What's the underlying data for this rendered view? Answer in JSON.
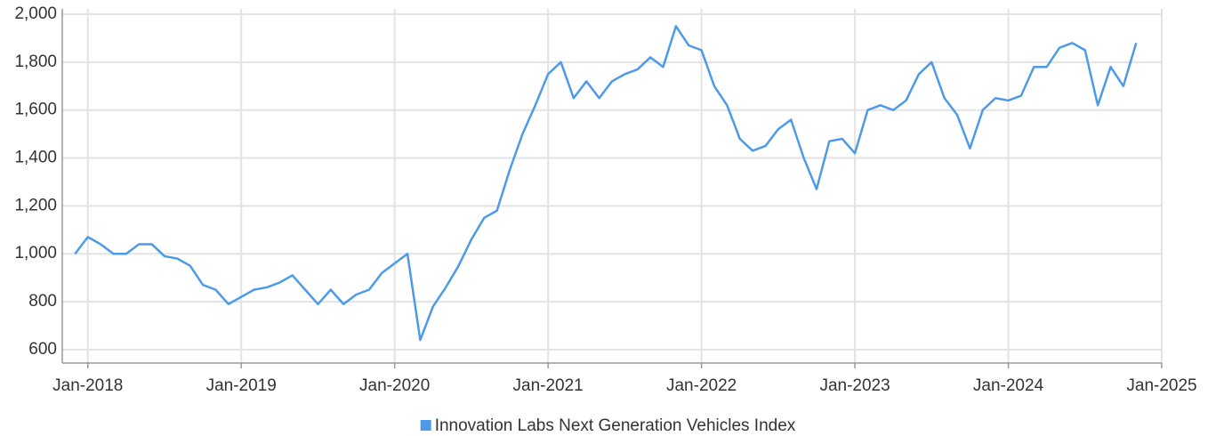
{
  "chart_data": {
    "type": "line",
    "x": [
      "2017-12",
      "2018-01",
      "2018-02",
      "2018-03",
      "2018-04",
      "2018-05",
      "2018-06",
      "2018-07",
      "2018-08",
      "2018-09",
      "2018-10",
      "2018-11",
      "2018-12",
      "2019-01",
      "2019-02",
      "2019-03",
      "2019-04",
      "2019-05",
      "2019-06",
      "2019-07",
      "2019-08",
      "2019-09",
      "2019-10",
      "2019-11",
      "2019-12",
      "2020-01",
      "2020-02",
      "2020-03",
      "2020-04",
      "2020-05",
      "2020-06",
      "2020-07",
      "2020-08",
      "2020-09",
      "2020-10",
      "2020-11",
      "2020-12",
      "2021-01",
      "2021-02",
      "2021-03",
      "2021-04",
      "2021-05",
      "2021-06",
      "2021-07",
      "2021-08",
      "2021-09",
      "2021-10",
      "2021-11",
      "2021-12",
      "2022-01",
      "2022-02",
      "2022-03",
      "2022-04",
      "2022-05",
      "2022-06",
      "2022-07",
      "2022-08",
      "2022-09",
      "2022-10",
      "2022-11",
      "2022-12",
      "2023-01",
      "2023-02",
      "2023-03",
      "2023-04",
      "2023-05",
      "2023-06",
      "2023-07",
      "2023-08",
      "2023-09",
      "2023-10",
      "2023-11",
      "2023-12",
      "2024-01",
      "2024-02",
      "2024-03",
      "2024-04",
      "2024-05",
      "2024-06",
      "2024-07",
      "2024-08",
      "2024-09",
      "2024-10",
      "2024-11"
    ],
    "series": [
      {
        "name": "Innovation Labs Next Generation Vehicles Index",
        "color": "#4d9be8",
        "values": [
          1000,
          1070,
          1040,
          1000,
          1000,
          1040,
          1040,
          990,
          980,
          950,
          870,
          850,
          790,
          820,
          850,
          860,
          880,
          910,
          850,
          790,
          850,
          790,
          830,
          850,
          920,
          960,
          1000,
          640,
          780,
          860,
          950,
          1060,
          1150,
          1180,
          1350,
          1500,
          1620,
          1750,
          1800,
          1650,
          1720,
          1650,
          1720,
          1750,
          1770,
          1820,
          1780,
          1950,
          1870,
          1850,
          1700,
          1620,
          1480,
          1430,
          1450,
          1520,
          1560,
          1400,
          1270,
          1470,
          1480,
          1420,
          1600,
          1620,
          1600,
          1640,
          1750,
          1800,
          1650,
          1580,
          1440,
          1600,
          1650,
          1640,
          1660,
          1780,
          1780,
          1860,
          1880,
          1850,
          1620,
          1780,
          1700,
          1880
        ]
      }
    ],
    "xlim": [
      "2017-11",
      "2025-01"
    ],
    "xticks": [
      {
        "value": "2018-01",
        "label": "Jan-2018"
      },
      {
        "value": "2019-01",
        "label": "Jan-2019"
      },
      {
        "value": "2020-01",
        "label": "Jan-2020"
      },
      {
        "value": "2021-01",
        "label": "Jan-2021"
      },
      {
        "value": "2022-01",
        "label": "Jan-2022"
      },
      {
        "value": "2023-01",
        "label": "Jan-2023"
      },
      {
        "value": "2024-01",
        "label": "Jan-2024"
      },
      {
        "value": "2025-01",
        "label": "Jan-2025"
      }
    ],
    "ylim": [
      544,
      2000
    ],
    "yticks": [
      600,
      800,
      {
        "value": 1000,
        "label": "1,000"
      },
      {
        "value": 1200,
        "label": "1,200"
      },
      {
        "value": 1400,
        "label": "1,400"
      },
      {
        "value": 1600,
        "label": "1,600"
      },
      {
        "value": 1800,
        "label": "1,800"
      },
      {
        "value": 2000,
        "label": "2,000"
      }
    ],
    "grid": true
  }
}
